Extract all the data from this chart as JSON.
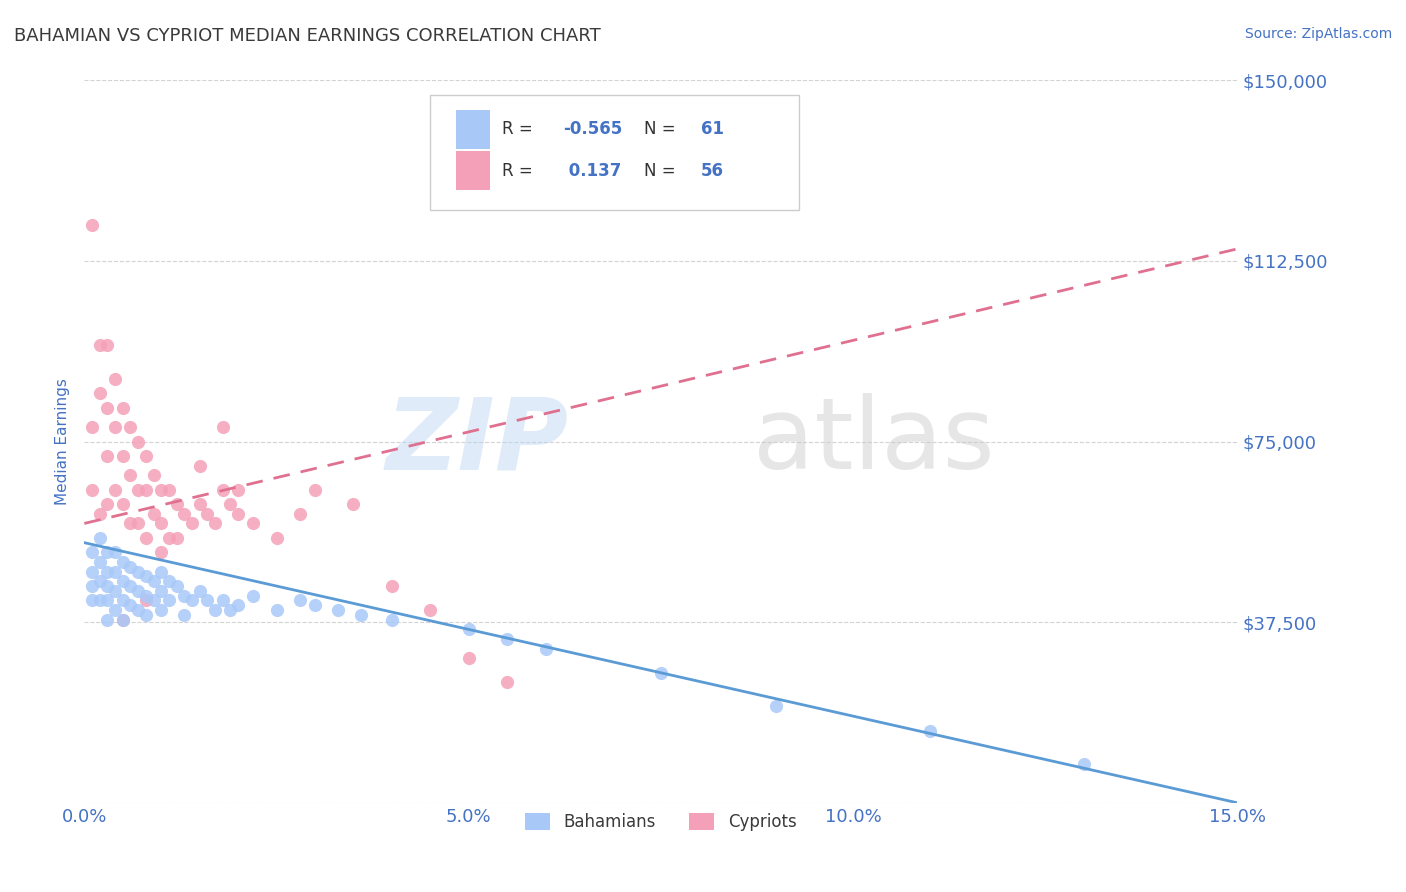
{
  "title": "BAHAMIAN VS CYPRIOT MEDIAN EARNINGS CORRELATION CHART",
  "source": "Source: ZipAtlas.com",
  "ylabel": "Median Earnings",
  "xlim": [
    0.0,
    0.15
  ],
  "ylim": [
    0,
    150000
  ],
  "yticks": [
    0,
    37500,
    75000,
    112500,
    150000
  ],
  "ytick_labels": [
    "",
    "$37,500",
    "$75,000",
    "$112,500",
    "$150,000"
  ],
  "xtick_labels": [
    "0.0%",
    "5.0%",
    "10.0%",
    "15.0%"
  ],
  "xticks": [
    0.0,
    0.05,
    0.1,
    0.15
  ],
  "bahamian_color": "#a8c8f8",
  "cypriot_color": "#f4a0b8",
  "bahamian_line_color": "#5b9bd5",
  "cypriot_line_color": "#e07090",
  "R_bahamian": -0.565,
  "N_bahamian": 61,
  "R_cypriot": 0.137,
  "N_cypriot": 56,
  "title_color": "#3a3a3a",
  "axis_label_color": "#4472c4",
  "tick_color": "#4472c4",
  "grid_color": "#c8c8c8",
  "background_color": "#ffffff",
  "bahamian_line_x0": 0.0,
  "bahamian_line_y0": 54000,
  "bahamian_line_x1": 0.15,
  "bahamian_line_y1": 0,
  "cypriot_line_x0": 0.0,
  "cypriot_line_y0": 58000,
  "cypriot_line_x1": 0.15,
  "cypriot_line_y1": 115000,
  "bahamian_scatter_x": [
    0.001,
    0.001,
    0.001,
    0.001,
    0.002,
    0.002,
    0.002,
    0.002,
    0.003,
    0.003,
    0.003,
    0.003,
    0.003,
    0.004,
    0.004,
    0.004,
    0.004,
    0.005,
    0.005,
    0.005,
    0.005,
    0.006,
    0.006,
    0.006,
    0.007,
    0.007,
    0.007,
    0.008,
    0.008,
    0.008,
    0.009,
    0.009,
    0.01,
    0.01,
    0.01,
    0.011,
    0.011,
    0.012,
    0.013,
    0.013,
    0.014,
    0.015,
    0.016,
    0.017,
    0.018,
    0.019,
    0.02,
    0.022,
    0.025,
    0.028,
    0.03,
    0.033,
    0.036,
    0.04,
    0.05,
    0.055,
    0.06,
    0.075,
    0.09,
    0.11,
    0.13
  ],
  "bahamian_scatter_y": [
    52000,
    48000,
    45000,
    42000,
    55000,
    50000,
    46000,
    42000,
    52000,
    48000,
    45000,
    42000,
    38000,
    52000,
    48000,
    44000,
    40000,
    50000,
    46000,
    42000,
    38000,
    49000,
    45000,
    41000,
    48000,
    44000,
    40000,
    47000,
    43000,
    39000,
    46000,
    42000,
    48000,
    44000,
    40000,
    46000,
    42000,
    45000,
    43000,
    39000,
    42000,
    44000,
    42000,
    40000,
    42000,
    40000,
    41000,
    43000,
    40000,
    42000,
    41000,
    40000,
    39000,
    38000,
    36000,
    34000,
    32000,
    27000,
    20000,
    15000,
    8000
  ],
  "cypriot_scatter_x": [
    0.001,
    0.001,
    0.001,
    0.002,
    0.002,
    0.002,
    0.003,
    0.003,
    0.003,
    0.003,
    0.004,
    0.004,
    0.004,
    0.005,
    0.005,
    0.005,
    0.006,
    0.006,
    0.006,
    0.007,
    0.007,
    0.007,
    0.008,
    0.008,
    0.008,
    0.009,
    0.009,
    0.01,
    0.01,
    0.011,
    0.011,
    0.012,
    0.012,
    0.013,
    0.014,
    0.015,
    0.016,
    0.017,
    0.018,
    0.019,
    0.02,
    0.022,
    0.025,
    0.028,
    0.03,
    0.035,
    0.04,
    0.045,
    0.05,
    0.055,
    0.02,
    0.018,
    0.015,
    0.01,
    0.008,
    0.005
  ],
  "cypriot_scatter_y": [
    120000,
    78000,
    65000,
    95000,
    85000,
    60000,
    95000,
    82000,
    72000,
    62000,
    88000,
    78000,
    65000,
    82000,
    72000,
    62000,
    78000,
    68000,
    58000,
    75000,
    65000,
    58000,
    72000,
    65000,
    55000,
    68000,
    60000,
    65000,
    58000,
    65000,
    55000,
    62000,
    55000,
    60000,
    58000,
    62000,
    60000,
    58000,
    65000,
    62000,
    60000,
    58000,
    55000,
    60000,
    65000,
    62000,
    45000,
    40000,
    30000,
    25000,
    65000,
    78000,
    70000,
    52000,
    42000,
    38000
  ]
}
